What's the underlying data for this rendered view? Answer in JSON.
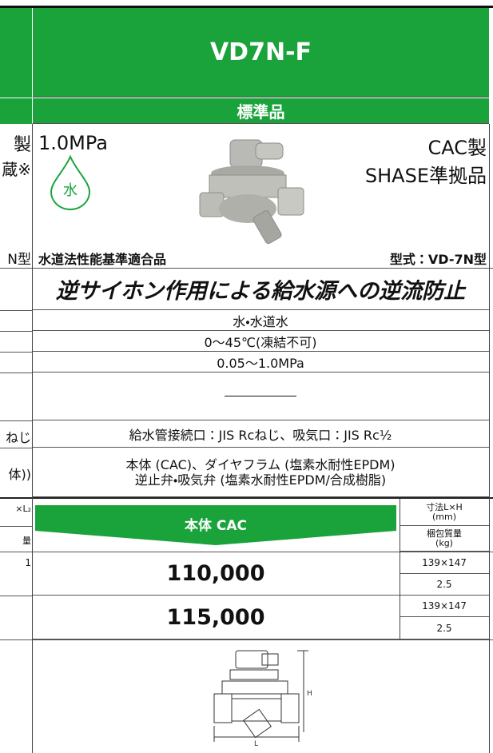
{
  "header": {
    "model": "VD7N-F",
    "band": "標準品"
  },
  "product": {
    "pressure": "1.0MPa",
    "material": "CAC製",
    "standard": "SHASE準拠品",
    "icon_label": "水",
    "certification": "水道法性能基準適合品",
    "type_code": "型式：VD-7N型"
  },
  "spec": {
    "feature": "逆サイホン作用による給水源への逆流防止",
    "fluid": "水・水道水",
    "temperature": "0〜45℃(凍結不可)",
    "pressure_range": "0.05〜1.0MPa",
    "connection": "給水管接続口：JIS Rcねじ、吸気口：JIS Rc½",
    "materials": [
      "本体 (CAC)、ダイヤフラム (塩素水耐性EPDM)",
      "逆止弁・吸気弁 (塩素水耐性EPDM/合成樹脂)"
    ]
  },
  "price": {
    "banner": "本体 CAC",
    "size_header": [
      "寸法L×H",
      "(mm)"
    ],
    "weight_header": [
      "梱包質量",
      "(kg)"
    ],
    "rows": [
      {
        "price": "110,000",
        "size": "139×147",
        "weight": "2.5"
      },
      {
        "price": "115,000",
        "size": "139×147",
        "weight": "2.5"
      }
    ]
  },
  "diagram": {
    "h_label": "H",
    "l_label": "L"
  },
  "left_column": [
    "製",
    "蔵※",
    "N型",
    "ねじ",
    "体))",
    "×L₂",
    "量",
    "1"
  ]
}
